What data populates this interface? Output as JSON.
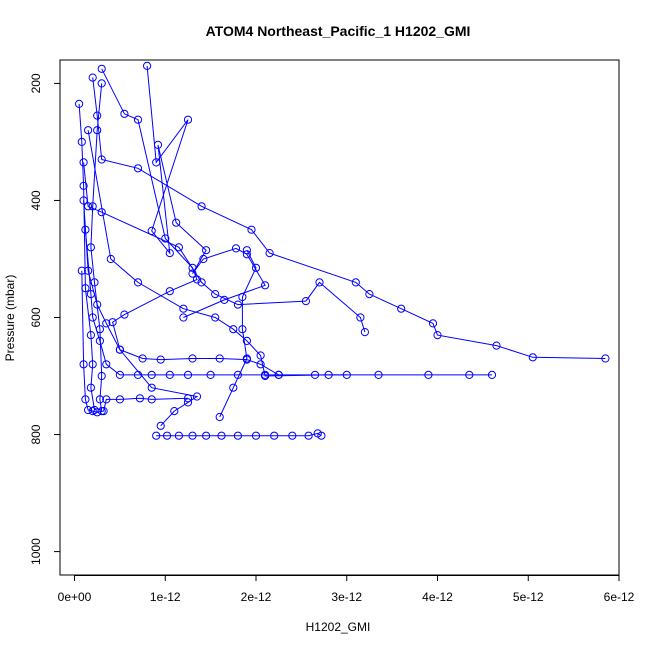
{
  "chart_data": {
    "type": "scatter",
    "title": "ATOM4 Northeast_Pacific_1 H1202_GMI",
    "xlabel": "H1202_GMI",
    "ylabel": "Pressure (mbar)",
    "xlim": [
      -1.6e-13,
      6e-12
    ],
    "ylim": [
      1040,
      160
    ],
    "y_reversed": true,
    "x_ticks": [
      0,
      1e-12,
      2e-12,
      3e-12,
      4e-12,
      5e-12,
      6e-12
    ],
    "x_tick_labels": [
      "0e+00",
      "1e-12",
      "2e-12",
      "3e-12",
      "4e-12",
      "5e-12",
      "6e-12"
    ],
    "y_ticks": [
      200,
      400,
      600,
      800,
      1000
    ],
    "y_tick_labels": [
      "200",
      "400",
      "600",
      "800",
      "1000"
    ],
    "grid": false,
    "legend": "none",
    "colors": {
      "series": "#0000ff",
      "axis": "#000000",
      "background": "#ffffff"
    },
    "series": [
      {
        "marker": "open-circle",
        "line": true,
        "points": [
          [
            8e-13,
            170
          ],
          [
            9e-13,
            335
          ],
          [
            1.25e-12,
            262
          ],
          [
            8.5e-13,
            452
          ],
          [
            1.05e-12,
            490
          ],
          [
            9.2e-13,
            305
          ],
          [
            1.12e-12,
            438
          ],
          [
            1.45e-12,
            485
          ],
          [
            1.3e-12,
            525
          ],
          [
            1.42e-12,
            500
          ],
          [
            1.78e-12,
            482
          ],
          [
            1.9e-12,
            492
          ],
          [
            2.1e-12,
            545
          ],
          [
            1.65e-12,
            570
          ],
          [
            1.2e-12,
            600
          ]
        ]
      },
      {
        "marker": "open-circle",
        "line": true,
        "points": [
          [
            3e-13,
            175
          ],
          [
            5.5e-13,
            252
          ],
          [
            7e-13,
            262
          ],
          [
            1e-12,
            465
          ],
          [
            1.3e-12,
            515
          ],
          [
            1.35e-12,
            535
          ],
          [
            1.05e-12,
            555
          ],
          [
            5.5e-13,
            595
          ],
          [
            4.2e-13,
            608
          ],
          [
            5e-13,
            655
          ],
          [
            8.5e-13,
            720
          ],
          [
            1.35e-12,
            735
          ],
          [
            1.25e-12,
            745
          ],
          [
            1.1e-12,
            760
          ],
          [
            9.5e-13,
            785
          ]
        ]
      },
      {
        "marker": "open-circle",
        "line": true,
        "points": [
          [
            2e-13,
            190
          ],
          [
            2.5e-13,
            255
          ],
          [
            3e-13,
            330
          ],
          [
            7e-13,
            345
          ],
          [
            1.4e-12,
            410
          ],
          [
            1.95e-12,
            450
          ],
          [
            2.15e-12,
            490
          ],
          [
            3.1e-12,
            540
          ],
          [
            3.25e-12,
            560
          ],
          [
            3.6e-12,
            585
          ],
          [
            3.95e-12,
            610
          ],
          [
            4e-12,
            630
          ],
          [
            4.65e-12,
            648
          ],
          [
            5.05e-12,
            668
          ],
          [
            5.85e-12,
            670
          ]
        ]
      },
      {
        "marker": "open-circle",
        "line": true,
        "points": [
          [
            1.5e-13,
            280
          ],
          [
            4e-13,
            500
          ],
          [
            7e-13,
            540
          ],
          [
            1.2e-12,
            585
          ],
          [
            1.55e-12,
            600
          ],
          [
            1.75e-12,
            620
          ],
          [
            1.9e-12,
            640
          ],
          [
            2.05e-12,
            665
          ],
          [
            2.1e-12,
            700
          ],
          [
            2.8e-12,
            698
          ],
          [
            3.35e-12,
            698
          ],
          [
            3.9e-12,
            698
          ],
          [
            4.35e-12,
            698
          ],
          [
            4.6e-12,
            698
          ]
        ]
      },
      {
        "marker": "open-circle",
        "line": true,
        "points": [
          [
            1e-13,
            335
          ],
          [
            1.5e-13,
            410
          ],
          [
            3e-13,
            420
          ],
          [
            1.15e-12,
            480
          ],
          [
            1.4e-12,
            540
          ],
          [
            1.55e-12,
            560
          ],
          [
            1.8e-12,
            578
          ],
          [
            2.55e-12,
            572
          ],
          [
            2.7e-12,
            540
          ],
          [
            3.15e-12,
            600
          ],
          [
            3.2e-12,
            625
          ]
        ]
      },
      {
        "marker": "open-circle",
        "line": true,
        "points": [
          [
            1e-13,
            400
          ],
          [
            1.5e-13,
            520
          ],
          [
            2.5e-13,
            578
          ],
          [
            3.5e-13,
            610
          ],
          [
            5e-13,
            655
          ],
          [
            7.5e-13,
            670
          ],
          [
            9.5e-13,
            672
          ],
          [
            1.3e-12,
            670
          ],
          [
            1.6e-12,
            670
          ],
          [
            1.9e-12,
            672
          ],
          [
            2.05e-12,
            680
          ],
          [
            2.25e-12,
            698
          ],
          [
            2.65e-12,
            698
          ],
          [
            3e-12,
            698
          ]
        ]
      },
      {
        "marker": "open-circle",
        "line": true,
        "points": [
          [
            1.2e-13,
            450
          ],
          [
            1.8e-13,
            560
          ],
          [
            2e-13,
            600
          ],
          [
            2.8e-13,
            640
          ],
          [
            3.5e-13,
            680
          ],
          [
            5e-13,
            698
          ],
          [
            7e-13,
            698
          ],
          [
            8.5e-13,
            698
          ],
          [
            1.05e-12,
            698
          ],
          [
            1.25e-12,
            698
          ],
          [
            1.5e-12,
            698
          ],
          [
            1.8e-12,
            698
          ],
          [
            2.1e-12,
            698
          ],
          [
            2.25e-12,
            698
          ]
        ]
      },
      {
        "marker": "open-circle",
        "line": true,
        "points": [
          [
            8e-14,
            520
          ],
          [
            1e-13,
            680
          ],
          [
            1.2e-13,
            740
          ],
          [
            1.5e-13,
            758
          ],
          [
            2e-13,
            760
          ],
          [
            2.5e-13,
            762
          ],
          [
            3.2e-13,
            760
          ],
          [
            3.5e-13,
            740
          ],
          [
            5e-13,
            740
          ],
          [
            7.2e-13,
            738
          ],
          [
            8.5e-13,
            740
          ],
          [
            1.25e-12,
            738
          ]
        ]
      },
      {
        "marker": "open-circle",
        "line": true,
        "points": [
          [
            9e-13,
            802
          ],
          [
            1.02e-12,
            802
          ],
          [
            1.15e-12,
            802
          ],
          [
            1.3e-12,
            802
          ],
          [
            1.45e-12,
            802
          ],
          [
            1.62e-12,
            802
          ],
          [
            1.8e-12,
            802
          ],
          [
            2e-12,
            802
          ],
          [
            2.2e-12,
            802
          ],
          [
            2.4e-12,
            802
          ],
          [
            2.58e-12,
            802
          ],
          [
            2.68e-12,
            798
          ],
          [
            2.72e-12,
            802
          ]
        ]
      },
      {
        "marker": "open-circle",
        "line": true,
        "points": [
          [
            3e-13,
            200
          ],
          [
            2.5e-13,
            280
          ],
          [
            2e-13,
            410
          ],
          [
            1.8e-13,
            480
          ],
          [
            2.2e-13,
            540
          ],
          [
            2.8e-13,
            620
          ],
          [
            3e-13,
            700
          ],
          [
            2.8e-13,
            740
          ],
          [
            3e-13,
            760
          ]
        ]
      },
      {
        "marker": "open-circle",
        "line": true,
        "points": [
          [
            1.9e-12,
            485
          ],
          [
            2e-12,
            515
          ],
          [
            1.85e-12,
            565
          ],
          [
            1.85e-12,
            620
          ],
          [
            1.9e-12,
            670
          ],
          [
            1.75e-12,
            720
          ],
          [
            1.6e-12,
            770
          ]
        ]
      },
      {
        "marker": "open-circle",
        "line": true,
        "points": [
          [
            5e-14,
            235
          ],
          [
            8e-14,
            300
          ],
          [
            1e-13,
            375
          ],
          [
            1.2e-13,
            550
          ],
          [
            1.8e-13,
            630
          ],
          [
            2e-13,
            680
          ],
          [
            1.8e-13,
            720
          ],
          [
            2.2e-13,
            758
          ]
        ]
      }
    ]
  }
}
